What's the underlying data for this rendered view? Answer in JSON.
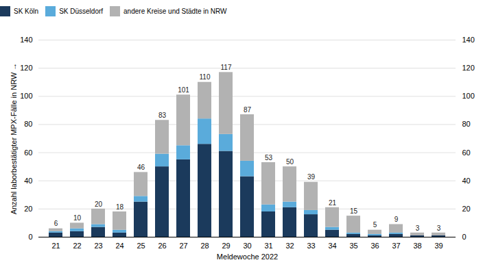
{
  "chart_data": {
    "type": "bar",
    "stacked": true,
    "xlabel": "Meldewoche 2022",
    "ylabel": "Anzahl laborbestätigter MPX-Fälle in NRW",
    "categories": [
      "21",
      "22",
      "23",
      "24",
      "25",
      "26",
      "27",
      "28",
      "29",
      "30",
      "31",
      "32",
      "33",
      "34",
      "35",
      "36",
      "37",
      "38",
      "39"
    ],
    "series": [
      {
        "name": "SK Köln",
        "color": "#1b3a5c",
        "values": [
          3,
          4,
          7,
          3,
          25,
          50,
          55,
          66,
          61,
          43,
          18,
          21,
          16,
          5,
          2,
          1,
          2,
          1,
          1
        ]
      },
      {
        "name": "SK Düsseldorf",
        "color": "#5aabdb",
        "values": [
          1,
          2,
          2,
          2,
          4,
          9,
          10,
          18,
          12,
          11,
          5,
          4,
          3,
          2,
          1,
          1,
          1,
          0,
          0
        ]
      },
      {
        "name": "andere Kreise und Städte in NRW",
        "color": "#b2b2b2",
        "values": [
          2,
          4,
          11,
          13,
          17,
          24,
          36,
          26,
          44,
          33,
          30,
          25,
          20,
          14,
          12,
          3,
          6,
          2,
          2
        ]
      }
    ],
    "totals": [
      6,
      10,
      20,
      18,
      46,
      83,
      101,
      110,
      117,
      87,
      53,
      50,
      39,
      21,
      15,
      5,
      9,
      3,
      3
    ],
    "ylim": [
      0,
      140
    ],
    "yticks": [
      0,
      20,
      40,
      60,
      80,
      100,
      120,
      140
    ],
    "grid": true,
    "legend": "upper left"
  }
}
